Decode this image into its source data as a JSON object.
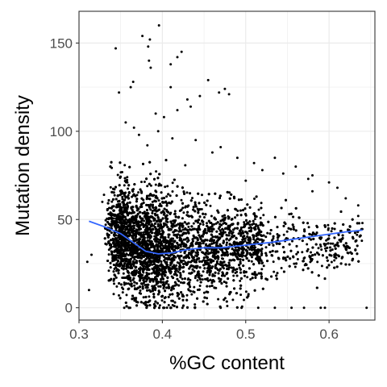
{
  "chart_data": {
    "type": "scatter",
    "title": "",
    "xlabel": "%GC content",
    "ylabel": "Mutation density",
    "xlim": [
      0.3,
      0.655
    ],
    "ylim": [
      -7,
      168
    ],
    "x_ticks": [
      0.3,
      0.4,
      0.5,
      0.6
    ],
    "x_tick_labels": [
      "0.3",
      "0.4",
      "0.5",
      "0.6"
    ],
    "y_ticks": [
      0,
      50,
      100,
      150
    ],
    "y_tick_labels": [
      "0",
      "50",
      "100",
      "150"
    ],
    "grid": true,
    "legend": "none",
    "colors": {
      "points": "#000000",
      "smooth_line": "#3366FF",
      "grid": "#ebebeb",
      "panel_border": "#333333"
    },
    "density_cloud": {
      "description_of_points": "dense cloud of several thousand points",
      "center_line": [
        [
          0.325,
          44
        ],
        [
          0.35,
          42
        ],
        [
          0.37,
          37
        ],
        [
          0.39,
          33
        ],
        [
          0.42,
          32
        ],
        [
          0.46,
          33
        ],
        [
          0.5,
          34
        ],
        [
          0.55,
          35
        ],
        [
          0.6,
          36
        ],
        [
          0.64,
          37
        ]
      ],
      "spread": [
        [
          0.325,
          14
        ],
        [
          0.35,
          17
        ],
        [
          0.38,
          19
        ],
        [
          0.42,
          18
        ],
        [
          0.46,
          15
        ],
        [
          0.5,
          14
        ],
        [
          0.55,
          12
        ],
        [
          0.6,
          9
        ],
        [
          0.64,
          7
        ]
      ],
      "n_points": 7000
    },
    "outliers": [
      [
        0.376,
        154
      ],
      [
        0.385,
        152
      ],
      [
        0.396,
        160
      ],
      [
        0.383,
        148
      ],
      [
        0.344,
        147
      ],
      [
        0.41,
        138
      ],
      [
        0.386,
        136
      ],
      [
        0.384,
        140
      ],
      [
        0.418,
        142
      ],
      [
        0.423,
        145
      ],
      [
        0.365,
        128
      ],
      [
        0.362,
        125
      ],
      [
        0.348,
        122
      ],
      [
        0.445,
        120
      ],
      [
        0.43,
        118
      ],
      [
        0.455,
        129
      ],
      [
        0.468,
        122
      ],
      [
        0.48,
        121
      ],
      [
        0.475,
        124
      ],
      [
        0.434,
        114
      ],
      [
        0.41,
        125
      ],
      [
        0.418,
        112
      ],
      [
        0.392,
        110
      ],
      [
        0.402,
        108
      ],
      [
        0.356,
        105
      ],
      [
        0.366,
        102
      ],
      [
        0.372,
        98
      ],
      [
        0.395,
        100
      ],
      [
        0.382,
        92
      ],
      [
        0.412,
        96
      ],
      [
        0.44,
        95
      ],
      [
        0.46,
        88
      ],
      [
        0.47,
        91
      ],
      [
        0.49,
        85
      ],
      [
        0.51,
        82
      ],
      [
        0.535,
        85
      ],
      [
        0.56,
        80
      ],
      [
        0.545,
        76
      ],
      [
        0.52,
        78
      ],
      [
        0.58,
        75
      ],
      [
        0.575,
        73
      ],
      [
        0.6,
        71
      ],
      [
        0.61,
        68
      ],
      [
        0.62,
        62
      ],
      [
        0.635,
        58
      ],
      [
        0.635,
        52
      ],
      [
        0.64,
        48
      ],
      [
        0.645,
        0
      ],
      [
        0.595,
        0
      ],
      [
        0.59,
        0
      ],
      [
        0.57,
        0
      ],
      [
        0.555,
        0
      ],
      [
        0.535,
        0
      ],
      [
        0.515,
        0
      ],
      [
        0.495,
        0
      ],
      [
        0.47,
        0
      ],
      [
        0.312,
        10
      ],
      [
        0.31,
        26
      ],
      [
        0.33,
        64
      ],
      [
        0.328,
        60
      ],
      [
        0.332,
        47
      ],
      [
        0.315,
        30
      ],
      [
        0.58,
        66
      ],
      [
        0.5,
        72
      ]
    ],
    "smooth_line": {
      "x": [
        0.312,
        0.33,
        0.35,
        0.365,
        0.38,
        0.395,
        0.41,
        0.43,
        0.45,
        0.47,
        0.5,
        0.53,
        0.56,
        0.59,
        0.62,
        0.64
      ],
      "y": [
        49,
        46,
        42,
        37,
        32,
        30.5,
        31,
        33,
        34,
        34,
        35.5,
        37,
        39,
        41,
        43,
        44
      ]
    }
  }
}
